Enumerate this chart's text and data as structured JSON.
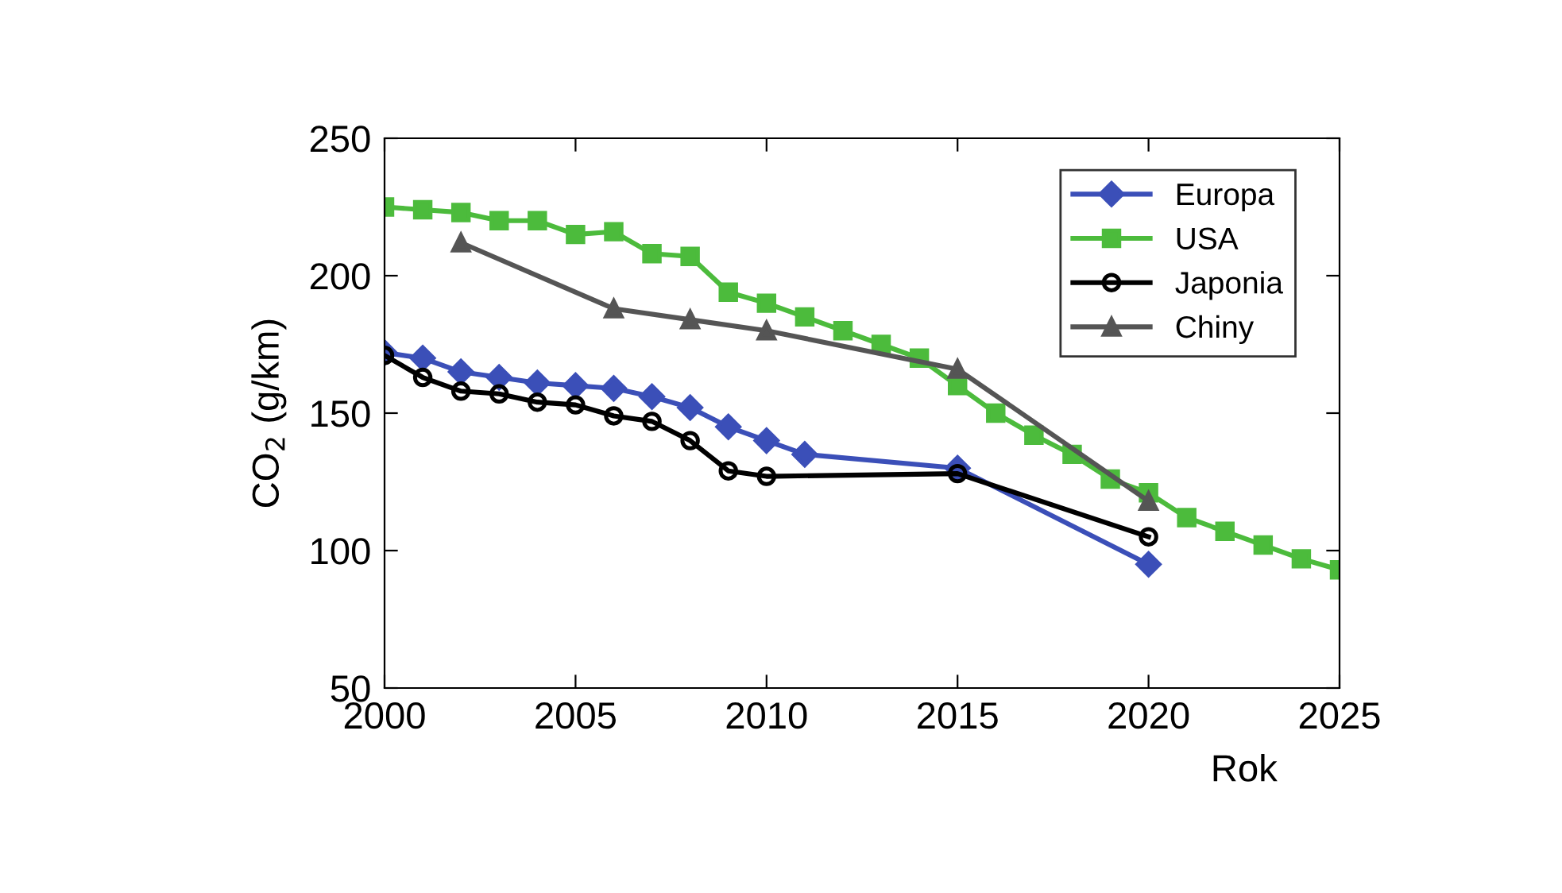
{
  "chart_data": {
    "type": "line",
    "xlabel": "Rok",
    "ylabel": "CO$_{2}$ (g/km)",
    "xlim": [
      2000,
      2025
    ],
    "xticks": [
      2000,
      2005,
      2010,
      2015,
      2020,
      2025
    ],
    "ylim": [
      50,
      250
    ],
    "yticks": [
      50,
      100,
      150,
      200,
      250
    ],
    "grid": false,
    "legend": "top right",
    "line_style": "solid",
    "series": [
      {
        "name": "Europa",
        "color": "#3b4fb8",
        "marker": "diamond",
        "x": [
          2000,
          2001,
          2002,
          2003,
          2004,
          2005,
          2006,
          2007,
          2008,
          2009,
          2010,
          2011,
          2015,
          2020
        ],
        "values": [
          172,
          170,
          165,
          163,
          161,
          160,
          159,
          156,
          152,
          145,
          140,
          135,
          130,
          95
        ]
      },
      {
        "name": "USA",
        "color": "#4cbb3c",
        "marker": "square",
        "x": [
          2000,
          2001,
          2002,
          2003,
          2004,
          2005,
          2006,
          2007,
          2008,
          2009,
          2010,
          2011,
          2012,
          2013,
          2014,
          2015,
          2016,
          2017,
          2018,
          2019,
          2020,
          2021,
          2022,
          2023,
          2024,
          2025
        ],
        "values": [
          225,
          224,
          223,
          220,
          220,
          215,
          216,
          208,
          207,
          194,
          190,
          185,
          180,
          175,
          170,
          160,
          150,
          142,
          135,
          126,
          121,
          112,
          107,
          102,
          97,
          93
        ]
      },
      {
        "name": "Japonia",
        "color": "#000000",
        "marker": "circle",
        "x": [
          2000,
          2001,
          2002,
          2003,
          2004,
          2005,
          2006,
          2007,
          2008,
          2009,
          2010,
          2015,
          2020
        ],
        "values": [
          171,
          163,
          158,
          157,
          154,
          153,
          149,
          147,
          140,
          129,
          127,
          128,
          105
        ]
      },
      {
        "name": "Chiny",
        "color": "#555555",
        "marker": "triangle",
        "x": [
          2002,
          2006,
          2008,
          2010,
          2015,
          2020
        ],
        "values": [
          212,
          188,
          184,
          180,
          166,
          118
        ]
      }
    ]
  }
}
